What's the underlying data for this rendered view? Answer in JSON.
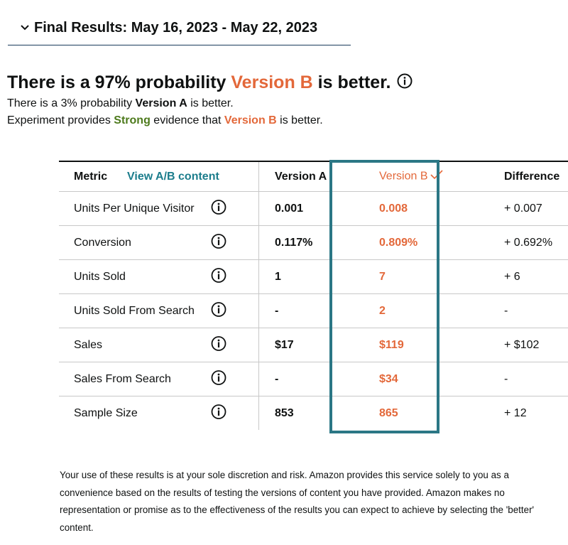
{
  "accordion": {
    "title": "Final Results: May 16, 2023 - May 22, 2023",
    "icon": "chevron-down-icon"
  },
  "headline": {
    "prefix": "There is a 97% probability ",
    "version": "Version B",
    "suffix": " is better.",
    "info_icon": "info-icon"
  },
  "sub1": {
    "prefix": "There is a 3% probability ",
    "version": "Version A",
    "suffix": " is better."
  },
  "sub2": {
    "prefix": "Experiment provides ",
    "strength": "Strong",
    "middle": " evidence that ",
    "version": "Version B",
    "suffix": " is better."
  },
  "table": {
    "headers": {
      "metric": "Metric",
      "view_link": "View A/B content",
      "version_a": "Version A",
      "version_b": "Version B",
      "difference": "Difference"
    },
    "rows": [
      {
        "metric": "Units Per Unique Visitor",
        "a": "0.001",
        "b": "0.008",
        "diff": "+ 0.007"
      },
      {
        "metric": "Conversion",
        "a": "0.117%",
        "b": "0.809%",
        "diff": "+ 0.692%"
      },
      {
        "metric": "Units Sold",
        "a": "1",
        "b": "7",
        "diff": "+ 6"
      },
      {
        "metric": "Units Sold From Search",
        "a": "-",
        "b": "2",
        "diff": "-"
      },
      {
        "metric": "Sales",
        "a": "$17",
        "b": "$119",
        "diff": "+ $102"
      },
      {
        "metric": "Sales From Search",
        "a": "-",
        "b": "$34",
        "diff": "-"
      },
      {
        "metric": "Sample Size",
        "a": "853",
        "b": "865",
        "diff": "+ 12"
      }
    ]
  },
  "disclaimer": "Your use of these results is at your sole discretion and risk. Amazon provides this service solely to you as a convenience based on the results of testing the versions of content you have provided. Amazon makes no representation or promise as to the effectiveness of the results you can expect to achieve by selecting the 'better' content.",
  "colors": {
    "accent_orange": "#e3683a",
    "link_teal": "#1c7d8c",
    "highlight_border": "#2b7785",
    "strong_green": "#4d7a1c"
  }
}
